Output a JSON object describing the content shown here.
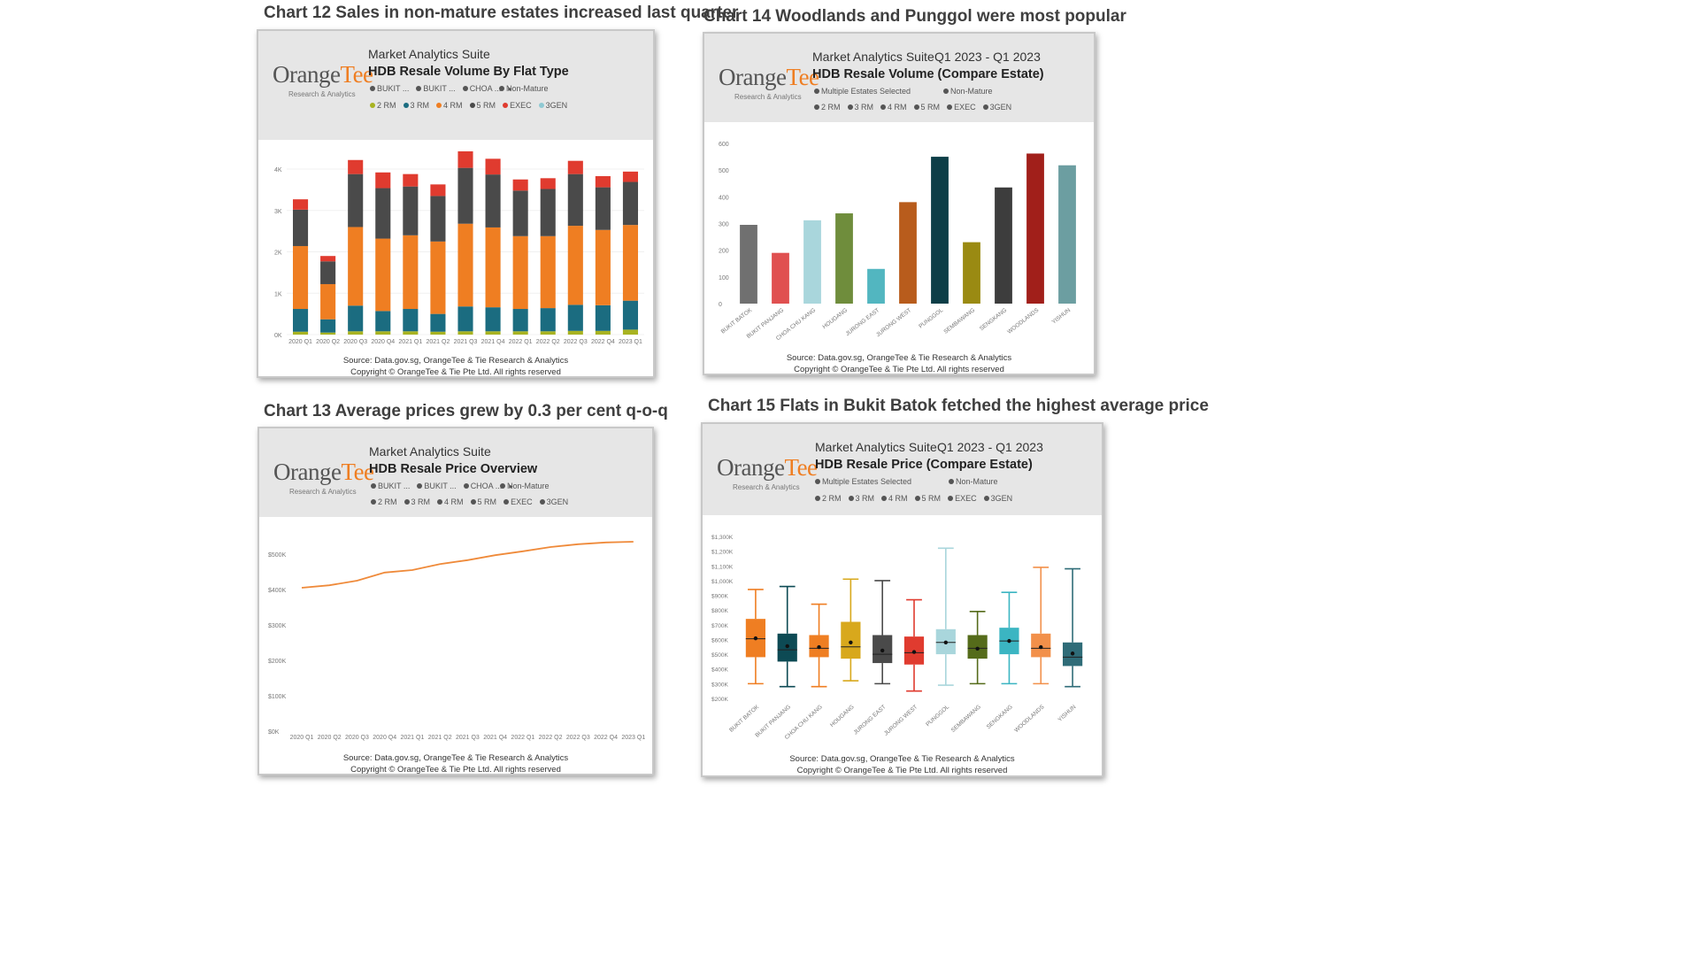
{
  "headings": {
    "c12": "Chart 12 Sales in non-mature estates increased last quarter",
    "c13": "Chart 13 Average prices grew by 0.3 per cent q-o-q",
    "c14": "Chart 14 Woodlands and Punggol were most popular",
    "c15": "Chart 15 Flats in Bukit Batok fetched the highest average price"
  },
  "common": {
    "brand_part1": "Orange",
    "brand_part2": "Tee",
    "brand_sub": "Research & Analytics",
    "suite": "Market Analytics Suite",
    "period": "Q1 2023 - Q1 2023",
    "non_mature": "Non-Mature",
    "multiple_estates": "Multiple Estates Selected",
    "filter_estates": [
      "BUKIT ...",
      "BUKIT ...",
      "CHOA ..."
    ],
    "filter_more": "▸",
    "source": "Source: Data.gov.sg, OrangeTee & Tie Research & Analytics",
    "copyright": "Copyright © OrangeTee & Tie Pte Ltd. All rights reserved"
  },
  "flat_types": [
    {
      "label": "2 RM",
      "color": "#a8b321"
    },
    {
      "label": "3 RM",
      "color": "#1b6c80"
    },
    {
      "label": "4 RM",
      "color": "#ef7e22"
    },
    {
      "label": "5 RM",
      "color": "#4a4a4a"
    },
    {
      "label": "EXEC",
      "color": "#e03b2f"
    },
    {
      "label": "3GEN",
      "color": "#8fc9d3"
    }
  ],
  "legend_grey": "#555555",
  "cards": {
    "c12": {
      "title": "HDB Resale Volume By Flat Type"
    },
    "c13": {
      "title": "HDB Resale Price Overview"
    },
    "c14": {
      "title": "HDB Resale Volume (Compare Estate)"
    },
    "c15": {
      "title": "HDB Resale Price (Compare Estate)"
    }
  },
  "chart_data": [
    {
      "id": "c12",
      "type": "bar",
      "stacked": true,
      "title": "HDB Resale Volume By Flat Type",
      "categories": [
        "2020 Q1",
        "2020 Q2",
        "2020 Q3",
        "2020 Q4",
        "2021 Q1",
        "2021 Q2",
        "2021 Q3",
        "2021 Q4",
        "2022 Q1",
        "2022 Q2",
        "2022 Q3",
        "2022 Q4",
        "2023 Q1"
      ],
      "y_ticks": [
        "0K",
        "1K",
        "2K",
        "3K",
        "4K"
      ],
      "ylim": [
        0,
        4600
      ],
      "series": [
        {
          "name": "2 RM",
          "color": "#a8b321",
          "values": [
            70,
            50,
            80,
            80,
            80,
            70,
            80,
            80,
            80,
            80,
            90,
            90,
            120
          ]
        },
        {
          "name": "3 RM",
          "color": "#1b6c80",
          "values": [
            550,
            320,
            620,
            490,
            540,
            430,
            600,
            580,
            540,
            560,
            630,
            620,
            700
          ]
        },
        {
          "name": "4 RM",
          "color": "#ef7e22",
          "values": [
            1520,
            850,
            1900,
            1750,
            1780,
            1750,
            2000,
            1930,
            1760,
            1740,
            1910,
            1820,
            1830
          ]
        },
        {
          "name": "5 RM",
          "color": "#4a4a4a",
          "values": [
            880,
            550,
            1280,
            1220,
            1180,
            1100,
            1350,
            1280,
            1100,
            1140,
            1250,
            1030,
            1040
          ]
        },
        {
          "name": "EXEC",
          "color": "#e03b2f",
          "values": [
            250,
            130,
            340,
            380,
            300,
            280,
            400,
            380,
            270,
            260,
            320,
            270,
            250
          ]
        },
        {
          "name": "3GEN",
          "color": "#8fc9d3",
          "values": [
            0,
            0,
            0,
            0,
            0,
            0,
            0,
            0,
            0,
            0,
            0,
            0,
            0
          ]
        }
      ]
    },
    {
      "id": "c13",
      "type": "line",
      "title": "HDB Resale Price Overview",
      "x": [
        "2020 Q1",
        "2020 Q2",
        "2020 Q3",
        "2020 Q4",
        "2021 Q1",
        "2021 Q2",
        "2021 Q3",
        "2021 Q4",
        "2022 Q1",
        "2022 Q2",
        "2022 Q3",
        "2022 Q4",
        "2023 Q1"
      ],
      "y": [
        405000,
        412000,
        425000,
        448000,
        455000,
        472000,
        483000,
        497000,
        508000,
        520000,
        528000,
        533000,
        535000
      ],
      "y_ticks": [
        "$0K",
        "$100K",
        "$200K",
        "$300K",
        "$400K",
        "$500K"
      ],
      "ylim": [
        0,
        560000
      ],
      "color": "#ef8a3a"
    },
    {
      "id": "c14",
      "type": "bar",
      "title": "HDB Resale Volume (Compare Estate)",
      "categories": [
        "BUKIT BATOK",
        "BUKIT PANJANG",
        "CHOA CHU KANG",
        "HOUGANG",
        "JURONG EAST",
        "JURONG WEST",
        "PUNGGOL",
        "SEMBAWANG",
        "SENGKANG",
        "WOODLANDS",
        "YISHUN"
      ],
      "values": [
        295,
        190,
        312,
        338,
        130,
        380,
        550,
        230,
        435,
        562,
        518
      ],
      "colors": [
        "#707070",
        "#e05050",
        "#a9d6dc",
        "#6f8d3c",
        "#52b6c0",
        "#b85c1c",
        "#0d3e47",
        "#9a8a12",
        "#3d3d3d",
        "#a11f1a",
        "#6c9ea1"
      ],
      "y_ticks": [
        "0",
        "100",
        "200",
        "300",
        "400",
        "500",
        "600"
      ],
      "ylim": [
        0,
        600
      ]
    },
    {
      "id": "c15",
      "type": "box",
      "title": "HDB Resale Price (Compare Estate)",
      "categories": [
        "BUKIT BATOK",
        "BUKIT PANJANG",
        "CHOA CHU KANG",
        "HOUGANG",
        "JURONG EAST",
        "JURONG WEST",
        "PUNGGOL",
        "SEMBAWANG",
        "SENGKANG",
        "WOODLANDS",
        "YISHUN"
      ],
      "colors": [
        "#ef7e22",
        "#0d4a54",
        "#ef7e22",
        "#d8a81c",
        "#4a4a4a",
        "#e03b2f",
        "#a9d6dc",
        "#556b1a",
        "#3bb5c2",
        "#f2904a",
        "#2f6c78"
      ],
      "boxes": [
        {
          "min": 300000,
          "q1": 480000,
          "median": 605000,
          "q3": 740000,
          "max": 940000,
          "mean": 608000
        },
        {
          "min": 280000,
          "q1": 450000,
          "median": 530000,
          "q3": 640000,
          "max": 960000,
          "mean": 555000
        },
        {
          "min": 280000,
          "q1": 480000,
          "median": 540000,
          "q3": 630000,
          "max": 840000,
          "mean": 548000
        },
        {
          "min": 320000,
          "q1": 470000,
          "median": 550000,
          "q3": 720000,
          "max": 1010000,
          "mean": 580000
        },
        {
          "min": 300000,
          "q1": 440000,
          "median": 500000,
          "q3": 630000,
          "max": 1000000,
          "mean": 525000
        },
        {
          "min": 250000,
          "q1": 430000,
          "median": 510000,
          "q3": 620000,
          "max": 870000,
          "mean": 515000
        },
        {
          "min": 290000,
          "q1": 500000,
          "median": 580000,
          "q3": 670000,
          "max": 1220000,
          "mean": 580000
        },
        {
          "min": 300000,
          "q1": 470000,
          "median": 540000,
          "q3": 630000,
          "max": 790000,
          "mean": 538000
        },
        {
          "min": 300000,
          "q1": 500000,
          "median": 590000,
          "q3": 680000,
          "max": 920000,
          "mean": 590000
        },
        {
          "min": 300000,
          "q1": 480000,
          "median": 540000,
          "q3": 640000,
          "max": 1090000,
          "mean": 548000
        },
        {
          "min": 280000,
          "q1": 420000,
          "median": 480000,
          "q3": 580000,
          "max": 1080000,
          "mean": 505000
        }
      ],
      "y_ticks": [
        "$200K",
        "$300K",
        "$400K",
        "$500K",
        "$600K",
        "$700K",
        "$800K",
        "$900K",
        "$1,000K",
        "$1,100K",
        "$1,200K",
        "$1,300K"
      ],
      "ylim": [
        200000,
        1300000
      ]
    }
  ]
}
